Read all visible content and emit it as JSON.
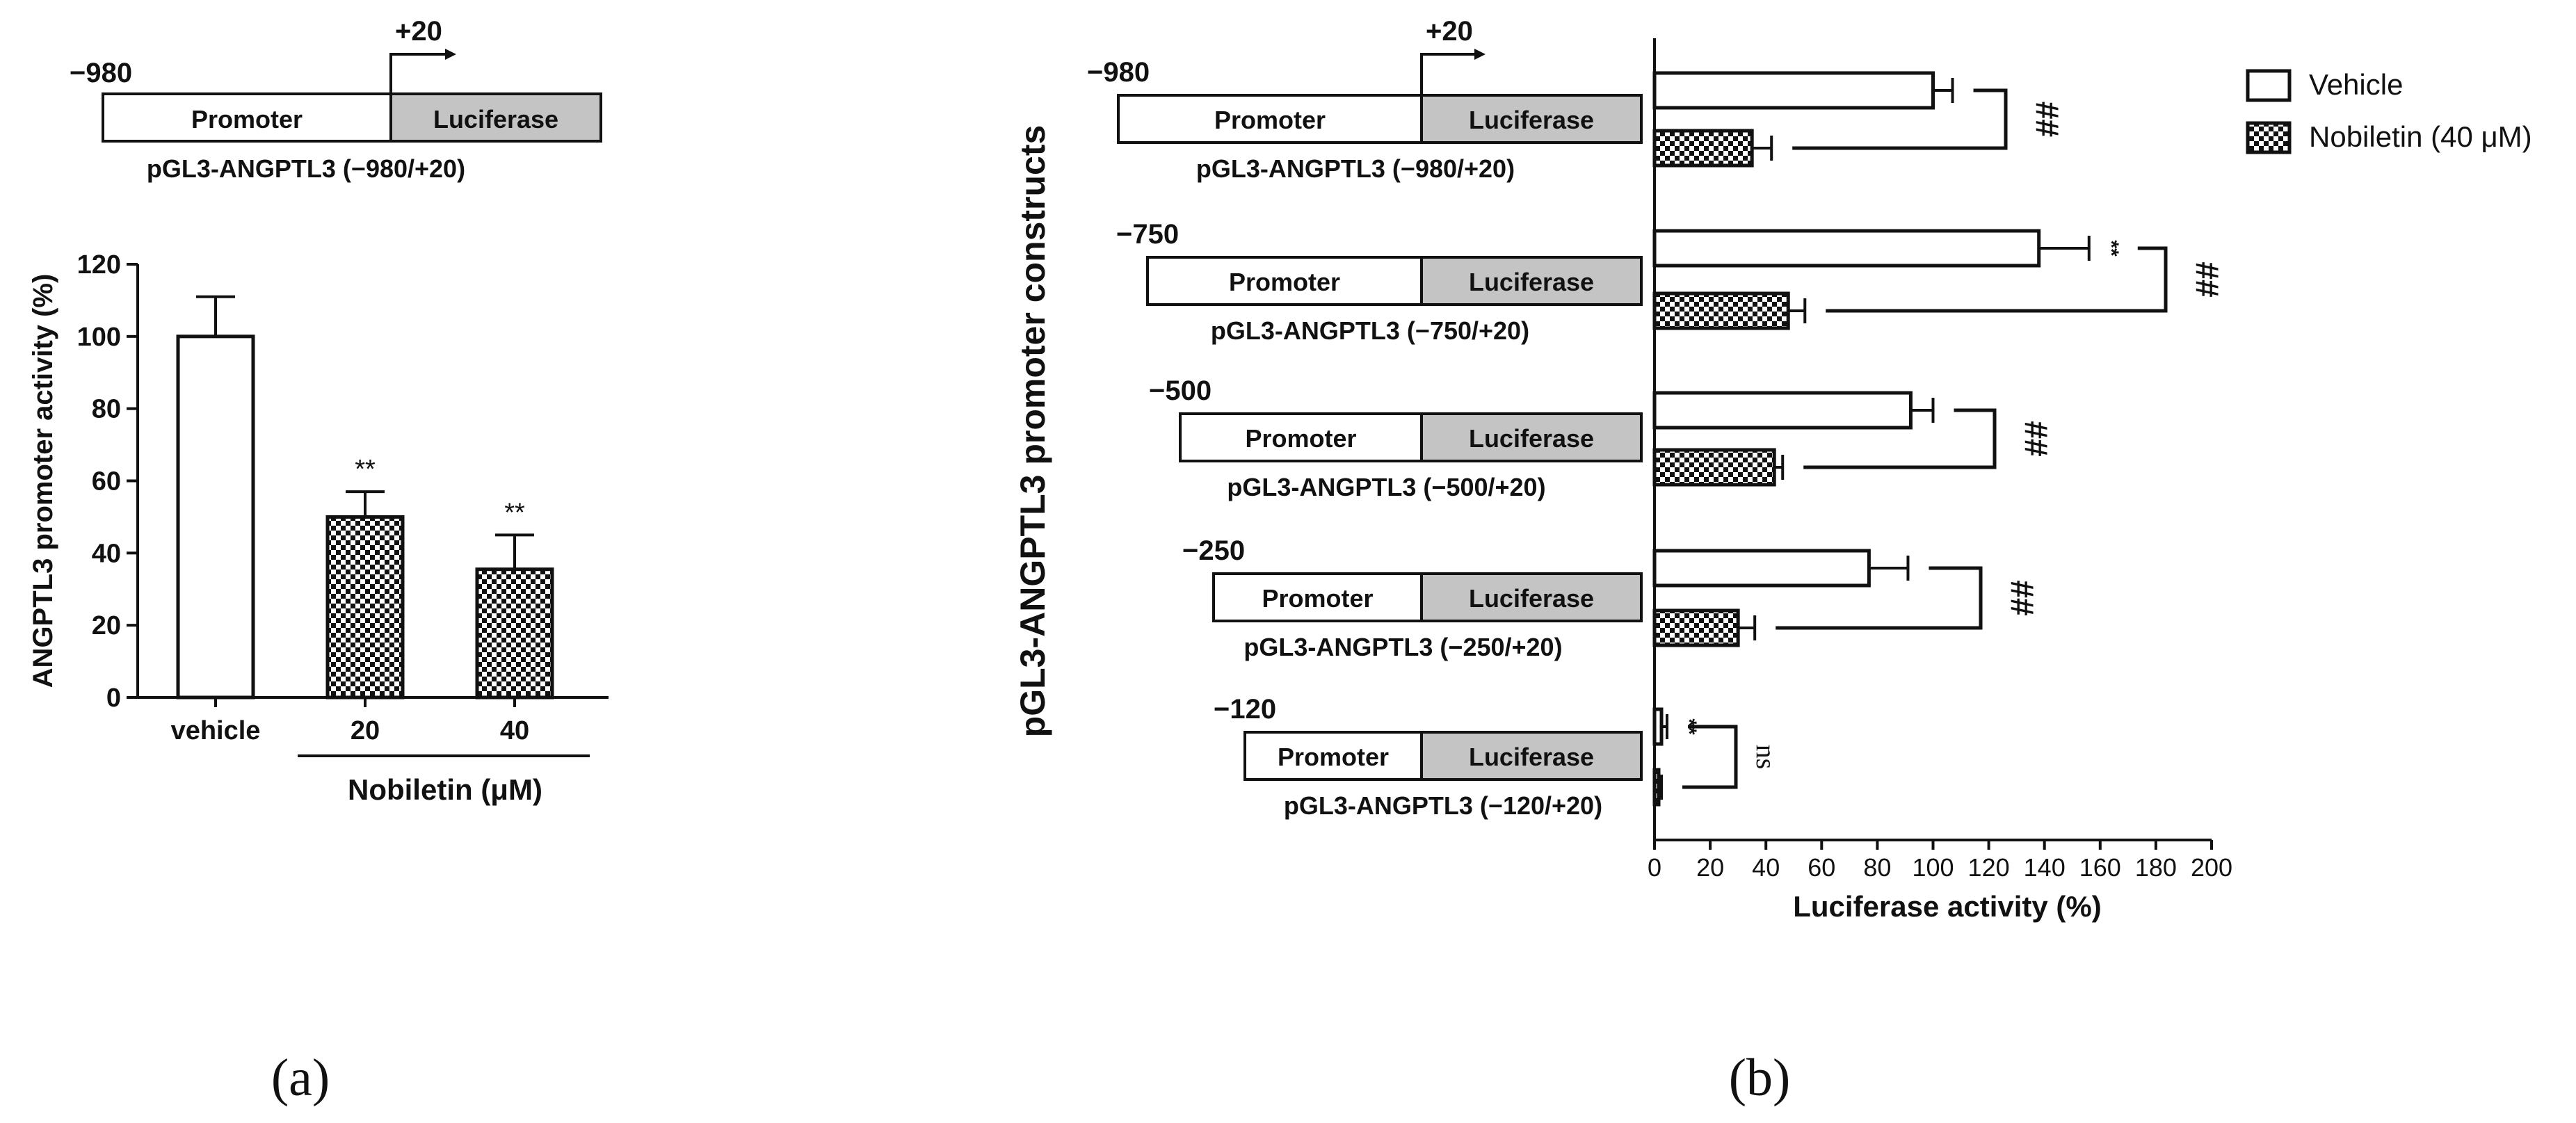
{
  "colors": {
    "stroke": "#111111",
    "luciferase_fill": "#c4c4c4",
    "vehicle_fill": "#ffffff"
  },
  "panel_a": {
    "label": "(a)",
    "construct": {
      "start": "−980",
      "tss": "+20",
      "promoter_label": "Promoter",
      "luciferase_label": "Luciferase",
      "name": "pGL3-ANGPTL3 (−980/+20)"
    },
    "group_label": "Nobiletin (μM)",
    "chart_data": {
      "type": "bar",
      "categories": [
        "vehicle",
        "20",
        "40"
      ],
      "values": [
        100,
        50,
        35.5
      ],
      "errors": [
        11,
        7,
        9.5
      ],
      "significance": [
        "",
        "**",
        "**"
      ],
      "fills": [
        "white",
        "checker",
        "checker"
      ],
      "ylabel": "ANGPTL3 promoter activity (%)",
      "xlabel": "",
      "ylim": [
        0,
        120
      ],
      "yticks": [
        "0",
        "20",
        "40",
        "60",
        "80",
        "100",
        "120"
      ],
      "grid": false
    }
  },
  "panel_b": {
    "label": "(b)",
    "tss": "+20",
    "ylabel": "pGL3-ANGPTL3 promoter constructs",
    "promoter_label": "Promoter",
    "luciferase_label": "Luciferase",
    "constructs": [
      {
        "start": "−980",
        "name": "pGL3-ANGPTL3 (−980/+20)"
      },
      {
        "start": "−750",
        "name": "pGL3-ANGPTL3 (−750/+20)"
      },
      {
        "start": "−500",
        "name": "pGL3-ANGPTL3 (−500/+20)"
      },
      {
        "start": "−250",
        "name": "pGL3-ANGPTL3 (−250/+20)"
      },
      {
        "start": "−120",
        "name": "pGL3-ANGPTL3 (−120/+20)"
      }
    ],
    "chart_data": {
      "type": "bar",
      "orientation": "horizontal",
      "categories": [
        "−980",
        "−750",
        "−500",
        "−250",
        "−120"
      ],
      "series": [
        {
          "name": "Vehicle",
          "values": [
            100,
            138,
            92,
            77,
            2.5
          ],
          "errors": [
            7,
            18,
            8,
            14,
            2
          ],
          "significance": [
            "",
            "**",
            "",
            "",
            "**"
          ]
        },
        {
          "name": "Nobiletin (40 μM)",
          "values": [
            35,
            48,
            43,
            30,
            1.5
          ],
          "errors": [
            7,
            6,
            3,
            6,
            1
          ],
          "significance": [
            "",
            "",
            "",
            "",
            ""
          ]
        }
      ],
      "comparisons": [
        "##",
        "##",
        "##",
        "##",
        "ns"
      ],
      "xlabel": "Luciferase activity (%)",
      "xlim": [
        0,
        200
      ],
      "xticks": [
        "0",
        "20",
        "40",
        "60",
        "80",
        "100",
        "120",
        "140",
        "160",
        "180",
        "200"
      ],
      "legend_position": "top-right",
      "grid": false
    }
  }
}
